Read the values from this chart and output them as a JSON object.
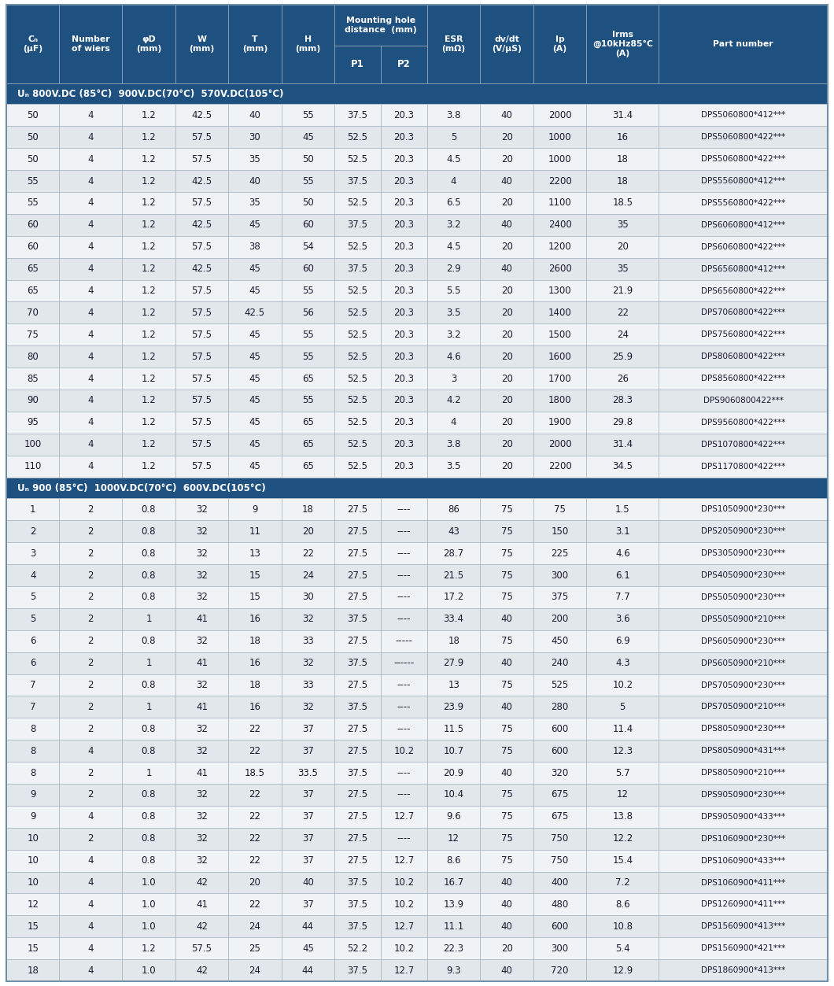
{
  "header_bg": "#1e5080",
  "header_text": "#ffffff",
  "section_bg": "#1e5080",
  "section_text": "#ffffff",
  "row_bg_light": "#f0f3f6",
  "row_bg_dark": "#e2e7ec",
  "row_text": "#1a1a2e",
  "col_headers": [
    "Cₙ\n(μF)",
    "Number\nof wiers",
    "φD\n(mm)",
    "W\n(mm)",
    "T\n(mm)",
    "H\n(mm)",
    "P1",
    "P2",
    "ESR\n(mΩ)",
    "dv/dt\n(V/μS)",
    "Ip\n(A)",
    "Irms\n@10kHz85°C\n(A)",
    "Part number"
  ],
  "mounting_hole_header": "Mounting hole\ndistance  (mm)",
  "col_widths_rel": [
    5.5,
    6.5,
    5.5,
    5.5,
    5.5,
    5.5,
    4.8,
    4.8,
    5.5,
    5.5,
    5.5,
    7.5,
    17.5
  ],
  "section1_label": "Uₙ 800V.DC (85°C)  900V.DC(70°C)  570V.DC(105°C)",
  "section2_label": "Uₙ 900 (85°C)  1000V.DC(70°C)  600V.DC(105°C)",
  "rows_section1": [
    [
      "50",
      "4",
      "1.2",
      "42.5",
      "40",
      "55",
      "37.5",
      "20.3",
      "3.8",
      "40",
      "2000",
      "31.4",
      "DPS5060800*412***"
    ],
    [
      "50",
      "4",
      "1.2",
      "57.5",
      "30",
      "45",
      "52.5",
      "20.3",
      "5",
      "20",
      "1000",
      "16",
      "DPS5060800*422***"
    ],
    [
      "50",
      "4",
      "1.2",
      "57.5",
      "35",
      "50",
      "52.5",
      "20.3",
      "4.5",
      "20",
      "1000",
      "18",
      "DPS5060800*422***"
    ],
    [
      "55",
      "4",
      "1.2",
      "42.5",
      "40",
      "55",
      "37.5",
      "20.3",
      "4",
      "40",
      "2200",
      "18",
      "DPS5560800*412***"
    ],
    [
      "55",
      "4",
      "1.2",
      "57.5",
      "35",
      "50",
      "52.5",
      "20.3",
      "6.5",
      "20",
      "1100",
      "18.5",
      "DPS5560800*422***"
    ],
    [
      "60",
      "4",
      "1.2",
      "42.5",
      "45",
      "60",
      "37.5",
      "20.3",
      "3.2",
      "40",
      "2400",
      "35",
      "DPS6060800*412***"
    ],
    [
      "60",
      "4",
      "1.2",
      "57.5",
      "38",
      "54",
      "52.5",
      "20.3",
      "4.5",
      "20",
      "1200",
      "20",
      "DPS6060800*422***"
    ],
    [
      "65",
      "4",
      "1.2",
      "42.5",
      "45",
      "60",
      "37.5",
      "20.3",
      "2.9",
      "40",
      "2600",
      "35",
      "DPS6560800*412***"
    ],
    [
      "65",
      "4",
      "1.2",
      "57.5",
      "45",
      "55",
      "52.5",
      "20.3",
      "5.5",
      "20",
      "1300",
      "21.9",
      "DPS6560800*422***"
    ],
    [
      "70",
      "4",
      "1.2",
      "57.5",
      "42.5",
      "56",
      "52.5",
      "20.3",
      "3.5",
      "20",
      "1400",
      "22",
      "DPS7060800*422***"
    ],
    [
      "75",
      "4",
      "1.2",
      "57.5",
      "45",
      "55",
      "52.5",
      "20.3",
      "3.2",
      "20",
      "1500",
      "24",
      "DPS7560800*422***"
    ],
    [
      "80",
      "4",
      "1.2",
      "57.5",
      "45",
      "55",
      "52.5",
      "20.3",
      "4.6",
      "20",
      "1600",
      "25.9",
      "DPS8060800*422***"
    ],
    [
      "85",
      "4",
      "1.2",
      "57.5",
      "45",
      "65",
      "52.5",
      "20.3",
      "3",
      "20",
      "1700",
      "26",
      "DPS8560800*422***"
    ],
    [
      "90",
      "4",
      "1.2",
      "57.5",
      "45",
      "55",
      "52.5",
      "20.3",
      "4.2",
      "20",
      "1800",
      "28.3",
      "DPS9060800422***"
    ],
    [
      "95",
      "4",
      "1.2",
      "57.5",
      "45",
      "65",
      "52.5",
      "20.3",
      "4",
      "20",
      "1900",
      "29.8",
      "DPS9560800*422***"
    ],
    [
      "100",
      "4",
      "1.2",
      "57.5",
      "45",
      "65",
      "52.5",
      "20.3",
      "3.8",
      "20",
      "2000",
      "31.4",
      "DPS1070800*422***"
    ],
    [
      "110",
      "4",
      "1.2",
      "57.5",
      "45",
      "65",
      "52.5",
      "20.3",
      "3.5",
      "20",
      "2200",
      "34.5",
      "DPS1170800*422***"
    ]
  ],
  "rows_section2": [
    [
      "1",
      "2",
      "0.8",
      "32",
      "9",
      "18",
      "27.5",
      "----",
      "86",
      "75",
      "75",
      "1.5",
      "DPS1050900*230***"
    ],
    [
      "2",
      "2",
      "0.8",
      "32",
      "11",
      "20",
      "27.5",
      "----",
      "43",
      "75",
      "150",
      "3.1",
      "DPS2050900*230***"
    ],
    [
      "3",
      "2",
      "0.8",
      "32",
      "13",
      "22",
      "27.5",
      "----",
      "28.7",
      "75",
      "225",
      "4.6",
      "DPS3050900*230***"
    ],
    [
      "4",
      "2",
      "0.8",
      "32",
      "15",
      "24",
      "27.5",
      "----",
      "21.5",
      "75",
      "300",
      "6.1",
      "DPS4050900*230***"
    ],
    [
      "5",
      "2",
      "0.8",
      "32",
      "15",
      "30",
      "27.5",
      "----",
      "17.2",
      "75",
      "375",
      "7.7",
      "DPS5050900*230***"
    ],
    [
      "5",
      "2",
      "1",
      "41",
      "16",
      "32",
      "37.5",
      "----",
      "33.4",
      "40",
      "200",
      "3.6",
      "DPS5050900*210***"
    ],
    [
      "6",
      "2",
      "0.8",
      "32",
      "18",
      "33",
      "27.5",
      "-----",
      "18",
      "75",
      "450",
      "6.9",
      "DPS6050900*230***"
    ],
    [
      "6",
      "2",
      "1",
      "41",
      "16",
      "32",
      "37.5",
      "------",
      "27.9",
      "40",
      "240",
      "4.3",
      "DPS6050900*210***"
    ],
    [
      "7",
      "2",
      "0.8",
      "32",
      "18",
      "33",
      "27.5",
      "----",
      "13",
      "75",
      "525",
      "10.2",
      "DPS7050900*230***"
    ],
    [
      "7",
      "2",
      "1",
      "41",
      "16",
      "32",
      "37.5",
      "----",
      "23.9",
      "40",
      "280",
      "5",
      "DPS7050900*210***"
    ],
    [
      "8",
      "2",
      "0.8",
      "32",
      "22",
      "37",
      "27.5",
      "----",
      "11.5",
      "75",
      "600",
      "11.4",
      "DPS8050900*230***"
    ],
    [
      "8",
      "4",
      "0.8",
      "32",
      "22",
      "37",
      "27.5",
      "10.2",
      "10.7",
      "75",
      "600",
      "12.3",
      "DPS8050900*431***"
    ],
    [
      "8",
      "2",
      "1",
      "41",
      "18.5",
      "33.5",
      "37.5",
      "----",
      "20.9",
      "40",
      "320",
      "5.7",
      "DPS8050900*210***"
    ],
    [
      "9",
      "2",
      "0.8",
      "32",
      "22",
      "37",
      "27.5",
      "----",
      "10.4",
      "75",
      "675",
      "12",
      "DPS9050900*230***"
    ],
    [
      "9",
      "4",
      "0.8",
      "32",
      "22",
      "37",
      "27.5",
      "12.7",
      "9.6",
      "75",
      "675",
      "13.8",
      "DPS9050900*433***"
    ],
    [
      "10",
      "2",
      "0.8",
      "32",
      "22",
      "37",
      "27.5",
      "----",
      "12",
      "75",
      "750",
      "12.2",
      "DPS1060900*230***"
    ],
    [
      "10",
      "4",
      "0.8",
      "32",
      "22",
      "37",
      "27.5",
      "12.7",
      "8.6",
      "75",
      "750",
      "15.4",
      "DPS1060900*433***"
    ],
    [
      "10",
      "4",
      "1.0",
      "42",
      "20",
      "40",
      "37.5",
      "10.2",
      "16.7",
      "40",
      "400",
      "7.2",
      "DPS1060900*411***"
    ],
    [
      "12",
      "4",
      "1.0",
      "41",
      "22",
      "37",
      "37.5",
      "10.2",
      "13.9",
      "40",
      "480",
      "8.6",
      "DPS1260900*411***"
    ],
    [
      "15",
      "4",
      "1.0",
      "42",
      "24",
      "44",
      "37.5",
      "12.7",
      "11.1",
      "40",
      "600",
      "10.8",
      "DPS1560900*413***"
    ],
    [
      "15",
      "4",
      "1.2",
      "57.5",
      "25",
      "45",
      "52.2",
      "10.2",
      "22.3",
      "20",
      "300",
      "5.4",
      "DPS1560900*421***"
    ],
    [
      "18",
      "4",
      "1.0",
      "42",
      "24",
      "44",
      "37.5",
      "12.7",
      "9.3",
      "40",
      "720",
      "12.9",
      "DPS1860900*413***"
    ]
  ]
}
